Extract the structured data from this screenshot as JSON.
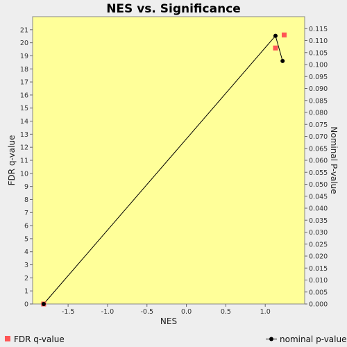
{
  "chart_data": {
    "type": "scatter",
    "title": "NES vs. Significance",
    "xlabel": "NES",
    "ylabel_left": "FDR q-value",
    "ylabel_right": "Nominal P-value",
    "xlim": [
      -1.95,
      1.5
    ],
    "ylim_left": [
      0,
      22
    ],
    "ylim_right": [
      0,
      0.12
    ],
    "x_ticks": [
      -1.5,
      -1.0,
      -0.5,
      0.0,
      0.5,
      1.0
    ],
    "x_tick_labels": [
      "-1.5",
      "-1.0",
      "-0.5",
      "0.0",
      "0.5",
      "1.0"
    ],
    "y_left_ticks": [
      0,
      1,
      2,
      3,
      4,
      5,
      6,
      7,
      8,
      9,
      10,
      11,
      12,
      13,
      14,
      15,
      16,
      17,
      18,
      19,
      20,
      21
    ],
    "y_left_tick_labels": [
      "0",
      "1",
      "2",
      "3",
      "4",
      "5",
      "6",
      "7",
      "8",
      "9",
      "10",
      "11",
      "12",
      "13",
      "14",
      "15",
      "16",
      "17",
      "18",
      "19",
      "20",
      "21"
    ],
    "y_right_ticks": [
      0.0,
      0.005,
      0.01,
      0.015,
      0.02,
      0.025,
      0.03,
      0.035,
      0.04,
      0.045,
      0.05,
      0.055,
      0.06,
      0.065,
      0.07,
      0.075,
      0.08,
      0.085,
      0.09,
      0.095,
      0.1,
      0.105,
      0.11,
      0.115
    ],
    "y_right_tick_labels": [
      "0.000",
      "0.005",
      "0.010",
      "0.015",
      "0.020",
      "0.025",
      "0.030",
      "0.035",
      "0.040",
      "0.045",
      "0.050",
      "0.055",
      "0.060",
      "0.065",
      "0.070",
      "0.075",
      "0.080",
      "0.085",
      "0.090",
      "0.095",
      "0.100",
      "0.105",
      "0.110",
      "0.115"
    ],
    "series": [
      {
        "name": "FDR q-value",
        "axis": "left",
        "marker": "square",
        "color": "#ff5555",
        "points": [
          [
            -1.81,
            0.0
          ],
          [
            1.13,
            19.6
          ],
          [
            1.24,
            20.6
          ]
        ]
      },
      {
        "name": "nominal p-value",
        "axis": "right",
        "marker": "circle-line",
        "color": "#000000",
        "points": [
          [
            -1.81,
            0.0
          ],
          [
            1.13,
            0.112
          ],
          [
            1.22,
            0.1015
          ]
        ]
      }
    ],
    "plot_background": "#ffff99",
    "page_background": "#eeeeee",
    "grid": false,
    "legend_position": "bottom"
  }
}
